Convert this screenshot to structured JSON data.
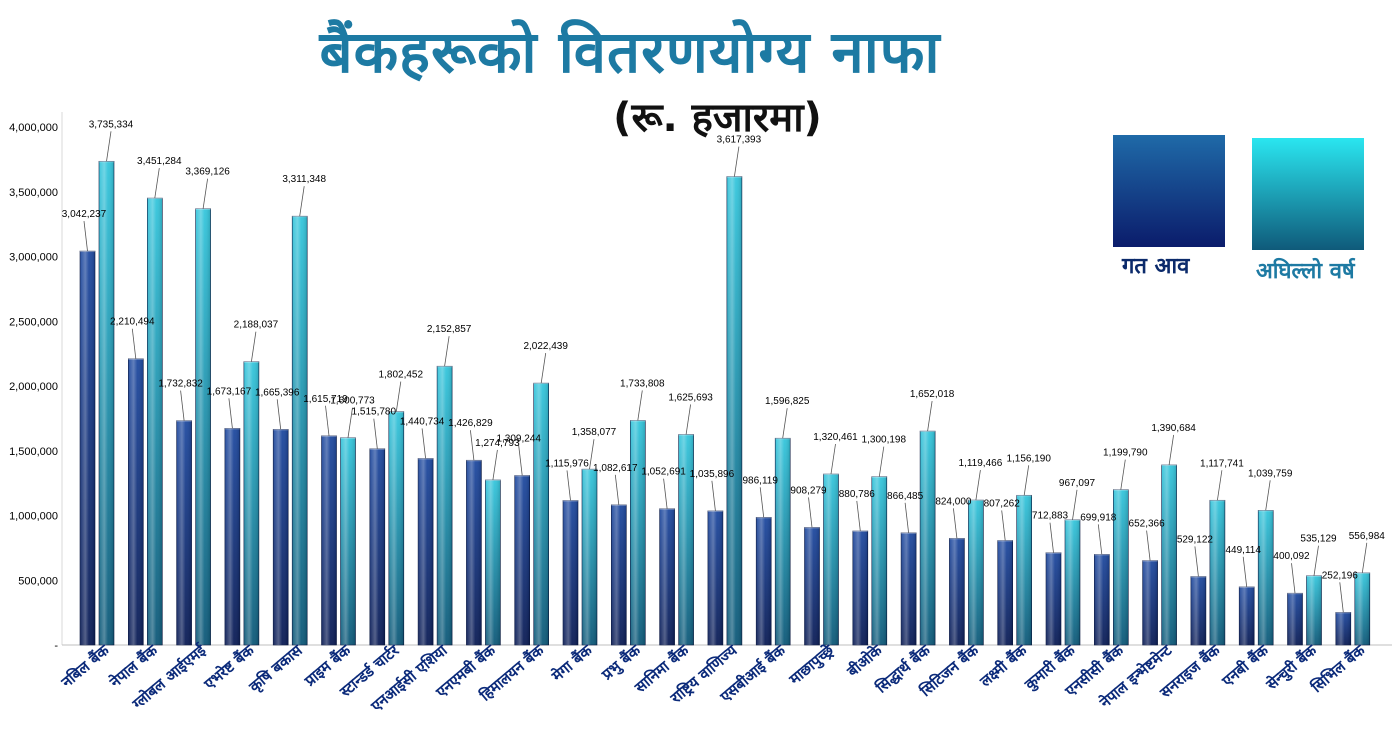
{
  "chart_data": {
    "type": "bar",
    "title": "बैंकहरूको वितरणयोग्य नाफा",
    "subtitle": "(रू. हजारमा)",
    "xlabel": "",
    "ylabel": "",
    "ylim": [
      0,
      4000000
    ],
    "yticks": [
      0,
      500000,
      1000000,
      1500000,
      2000000,
      2500000,
      3000000,
      3500000,
      4000000
    ],
    "ytick_labels": [
      "-",
      "500,000",
      "1,000,000",
      "1,500,000",
      "2,000,000",
      "2,500,000",
      "3,000,000",
      "3,500,000",
      "4,000,000"
    ],
    "grid": false,
    "legend_position": "top-right",
    "categories": [
      "नबिल बैंक",
      "नेपाल बैंक",
      "ग्लोबल आईएमई",
      "एभरेष्ट बैंक",
      "कृषि बकास",
      "प्राइम बैंक",
      "स्टान्डर्ड चार्टर",
      "एनआईसी एशिया",
      "एनएमबी बैंक",
      "हिमालयन बैंक",
      "मेगा बैंक",
      "प्रभु बैंक",
      "सानिमा बैंक",
      "राष्ट्रिय वाणिज्य",
      "एसबीआई बैंक",
      "माछापुच्छ्रे",
      "बीओके",
      "सिद्धार्थ बैंक",
      "सिटिजन बैंक",
      "लक्ष्मी बैंक",
      "कुमारी बैंक",
      "एनसीसी बैंक",
      "नेपाल इन्भेष्टमेन्ट",
      "सनराइज बैंक",
      "एनबी बैंक",
      "सेन्चुरी बैंक",
      "सिभिल बैंक"
    ],
    "series": [
      {
        "name": "गत आव",
        "color_top": "#1f4aa0",
        "color_bottom": "#0b1c55",
        "values": [
          3042237,
          2210494,
          1732832,
          1673167,
          1665396,
          1615719,
          1515780,
          1440734,
          1426829,
          1309244,
          1115976,
          1082617,
          1052691,
          1035896,
          986119,
          908279,
          880786,
          866485,
          824000,
          807262,
          712883,
          699918,
          652366,
          529122,
          449114,
          400092,
          252196
        ],
        "labels": [
          "3,042,237",
          "2,210,494",
          "1,732,832",
          "1,673,167",
          "1,665,396",
          "1,615,719",
          "1,515,780",
          "1,440,734",
          "1,426,829",
          "1,309,244",
          "1,115,976",
          "1,082,617",
          "1,052,691",
          "1,035,896",
          "986,119",
          "908,279",
          "880,786",
          "866,485",
          "824,000",
          "807,262",
          "712,883",
          "699,918",
          "652,366",
          "529,122",
          "449,114",
          "400,092",
          "252,196"
        ]
      },
      {
        "name": "अघिल्लो वर्ष",
        "color_top": "#35c6dc",
        "color_bottom": "#0e5878",
        "values": [
          3735334,
          3451284,
          3369126,
          2188037,
          3311348,
          1600773,
          1802452,
          2152857,
          1274793,
          2022439,
          1358077,
          1733808,
          1625693,
          3617393,
          1596825,
          1320461,
          1300198,
          1652018,
          1119466,
          1156190,
          967097,
          1199790,
          1390684,
          1117741,
          1039759,
          535129,
          556984
        ],
        "labels": [
          "3,735,334",
          "3,451,284",
          "3,369,126",
          "2,188,037",
          "3,311,348",
          "1,600,773",
          "1,802,452",
          "2,152,857",
          "1,274,793",
          "2,022,439",
          "1,358,077",
          "1,733,808",
          "1,625,693",
          "3,617,393",
          "1,596,825",
          "1,320,461",
          "1,300,198",
          "1,652,018",
          "1,119,466",
          "1,156,190",
          "967,097",
          "1,199,790",
          "1,390,684",
          "1,117,741",
          "1,039,759",
          "535,129",
          "556,984"
        ]
      }
    ]
  },
  "legend": {
    "items": [
      {
        "label": "गत आव",
        "label_color": "#0b2a6b",
        "grad_top": "#1f6aa8",
        "grad_bottom": "#0b1c6b"
      },
      {
        "label": "अघिल्लो वर्ष",
        "label_color": "#1d7aa3",
        "grad_top": "#2ae6f0",
        "grad_bottom": "#0f5a7a"
      }
    ]
  }
}
